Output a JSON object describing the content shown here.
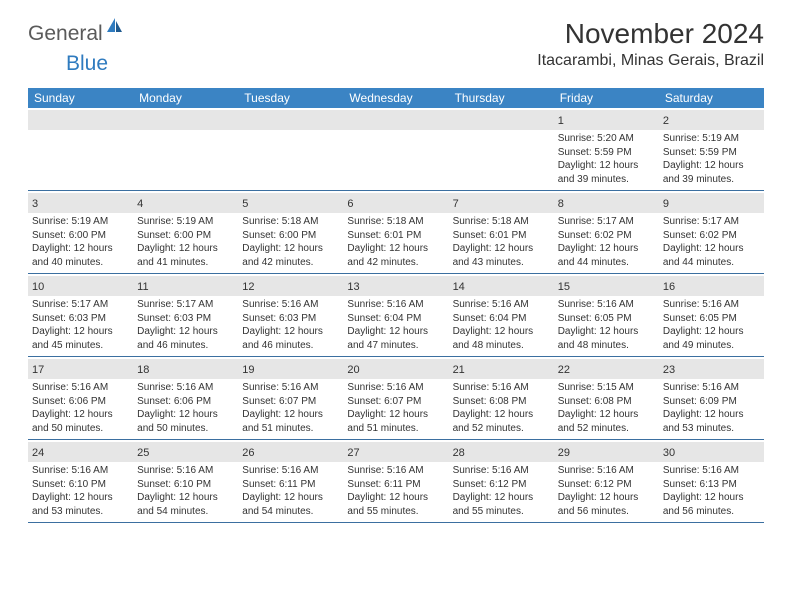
{
  "brand": {
    "part1": "General",
    "part2": "Blue"
  },
  "title": "November 2024",
  "location": "Itacarambi, Minas Gerais, Brazil",
  "colors": {
    "header_bg": "#3b84c4",
    "header_text": "#ffffff",
    "day_shade": "#e6e6e6",
    "text": "#333333",
    "rule": "#3b6fa0",
    "brand_gray": "#5a5a5a",
    "brand_blue": "#2f7bbf"
  },
  "typography": {
    "title_fontsize": 28,
    "location_fontsize": 16,
    "header_fontsize": 12,
    "daynum_fontsize": 11,
    "body_fontsize": 10
  },
  "day_labels": [
    "Sunday",
    "Monday",
    "Tuesday",
    "Wednesday",
    "Thursday",
    "Friday",
    "Saturday"
  ],
  "weeks": [
    [
      null,
      null,
      null,
      null,
      null,
      {
        "n": "1",
        "sr": "Sunrise: 5:20 AM",
        "ss": "Sunset: 5:59 PM",
        "d1": "Daylight: 12 hours",
        "d2": "and 39 minutes."
      },
      {
        "n": "2",
        "sr": "Sunrise: 5:19 AM",
        "ss": "Sunset: 5:59 PM",
        "d1": "Daylight: 12 hours",
        "d2": "and 39 minutes."
      }
    ],
    [
      {
        "n": "3",
        "sr": "Sunrise: 5:19 AM",
        "ss": "Sunset: 6:00 PM",
        "d1": "Daylight: 12 hours",
        "d2": "and 40 minutes."
      },
      {
        "n": "4",
        "sr": "Sunrise: 5:19 AM",
        "ss": "Sunset: 6:00 PM",
        "d1": "Daylight: 12 hours",
        "d2": "and 41 minutes."
      },
      {
        "n": "5",
        "sr": "Sunrise: 5:18 AM",
        "ss": "Sunset: 6:00 PM",
        "d1": "Daylight: 12 hours",
        "d2": "and 42 minutes."
      },
      {
        "n": "6",
        "sr": "Sunrise: 5:18 AM",
        "ss": "Sunset: 6:01 PM",
        "d1": "Daylight: 12 hours",
        "d2": "and 42 minutes."
      },
      {
        "n": "7",
        "sr": "Sunrise: 5:18 AM",
        "ss": "Sunset: 6:01 PM",
        "d1": "Daylight: 12 hours",
        "d2": "and 43 minutes."
      },
      {
        "n": "8",
        "sr": "Sunrise: 5:17 AM",
        "ss": "Sunset: 6:02 PM",
        "d1": "Daylight: 12 hours",
        "d2": "and 44 minutes."
      },
      {
        "n": "9",
        "sr": "Sunrise: 5:17 AM",
        "ss": "Sunset: 6:02 PM",
        "d1": "Daylight: 12 hours",
        "d2": "and 44 minutes."
      }
    ],
    [
      {
        "n": "10",
        "sr": "Sunrise: 5:17 AM",
        "ss": "Sunset: 6:03 PM",
        "d1": "Daylight: 12 hours",
        "d2": "and 45 minutes."
      },
      {
        "n": "11",
        "sr": "Sunrise: 5:17 AM",
        "ss": "Sunset: 6:03 PM",
        "d1": "Daylight: 12 hours",
        "d2": "and 46 minutes."
      },
      {
        "n": "12",
        "sr": "Sunrise: 5:16 AM",
        "ss": "Sunset: 6:03 PM",
        "d1": "Daylight: 12 hours",
        "d2": "and 46 minutes."
      },
      {
        "n": "13",
        "sr": "Sunrise: 5:16 AM",
        "ss": "Sunset: 6:04 PM",
        "d1": "Daylight: 12 hours",
        "d2": "and 47 minutes."
      },
      {
        "n": "14",
        "sr": "Sunrise: 5:16 AM",
        "ss": "Sunset: 6:04 PM",
        "d1": "Daylight: 12 hours",
        "d2": "and 48 minutes."
      },
      {
        "n": "15",
        "sr": "Sunrise: 5:16 AM",
        "ss": "Sunset: 6:05 PM",
        "d1": "Daylight: 12 hours",
        "d2": "and 48 minutes."
      },
      {
        "n": "16",
        "sr": "Sunrise: 5:16 AM",
        "ss": "Sunset: 6:05 PM",
        "d1": "Daylight: 12 hours",
        "d2": "and 49 minutes."
      }
    ],
    [
      {
        "n": "17",
        "sr": "Sunrise: 5:16 AM",
        "ss": "Sunset: 6:06 PM",
        "d1": "Daylight: 12 hours",
        "d2": "and 50 minutes."
      },
      {
        "n": "18",
        "sr": "Sunrise: 5:16 AM",
        "ss": "Sunset: 6:06 PM",
        "d1": "Daylight: 12 hours",
        "d2": "and 50 minutes."
      },
      {
        "n": "19",
        "sr": "Sunrise: 5:16 AM",
        "ss": "Sunset: 6:07 PM",
        "d1": "Daylight: 12 hours",
        "d2": "and 51 minutes."
      },
      {
        "n": "20",
        "sr": "Sunrise: 5:16 AM",
        "ss": "Sunset: 6:07 PM",
        "d1": "Daylight: 12 hours",
        "d2": "and 51 minutes."
      },
      {
        "n": "21",
        "sr": "Sunrise: 5:16 AM",
        "ss": "Sunset: 6:08 PM",
        "d1": "Daylight: 12 hours",
        "d2": "and 52 minutes."
      },
      {
        "n": "22",
        "sr": "Sunrise: 5:15 AM",
        "ss": "Sunset: 6:08 PM",
        "d1": "Daylight: 12 hours",
        "d2": "and 52 minutes."
      },
      {
        "n": "23",
        "sr": "Sunrise: 5:16 AM",
        "ss": "Sunset: 6:09 PM",
        "d1": "Daylight: 12 hours",
        "d2": "and 53 minutes."
      }
    ],
    [
      {
        "n": "24",
        "sr": "Sunrise: 5:16 AM",
        "ss": "Sunset: 6:10 PM",
        "d1": "Daylight: 12 hours",
        "d2": "and 53 minutes."
      },
      {
        "n": "25",
        "sr": "Sunrise: 5:16 AM",
        "ss": "Sunset: 6:10 PM",
        "d1": "Daylight: 12 hours",
        "d2": "and 54 minutes."
      },
      {
        "n": "26",
        "sr": "Sunrise: 5:16 AM",
        "ss": "Sunset: 6:11 PM",
        "d1": "Daylight: 12 hours",
        "d2": "and 54 minutes."
      },
      {
        "n": "27",
        "sr": "Sunrise: 5:16 AM",
        "ss": "Sunset: 6:11 PM",
        "d1": "Daylight: 12 hours",
        "d2": "and 55 minutes."
      },
      {
        "n": "28",
        "sr": "Sunrise: 5:16 AM",
        "ss": "Sunset: 6:12 PM",
        "d1": "Daylight: 12 hours",
        "d2": "and 55 minutes."
      },
      {
        "n": "29",
        "sr": "Sunrise: 5:16 AM",
        "ss": "Sunset: 6:12 PM",
        "d1": "Daylight: 12 hours",
        "d2": "and 56 minutes."
      },
      {
        "n": "30",
        "sr": "Sunrise: 5:16 AM",
        "ss": "Sunset: 6:13 PM",
        "d1": "Daylight: 12 hours",
        "d2": "and 56 minutes."
      }
    ]
  ]
}
